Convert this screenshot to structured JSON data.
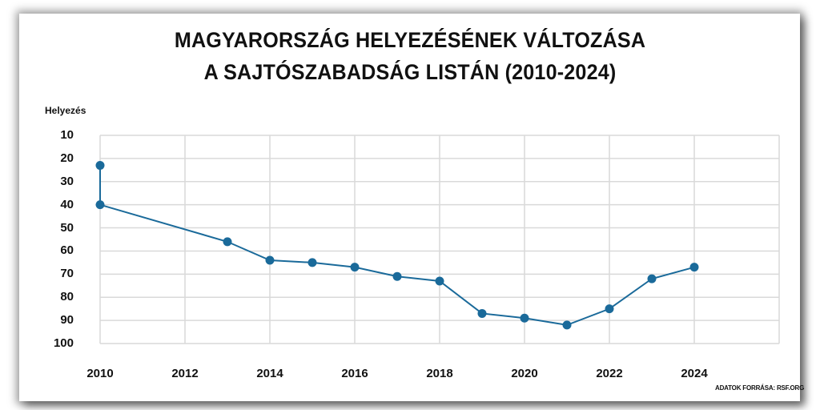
{
  "title_line1": "MAGYARORSZÁG HELYEZÉSÉNEK VÁLTOZÁSA",
  "title_line2": "A SAJTÓSZABADSÁG LISTÁN (2010-2024)",
  "source": "ADATOK FORRÁSA: RSF.ORG",
  "colors": {
    "series": "#1a6a9a",
    "grid": "#d9d9d9",
    "text": "#111111"
  },
  "chart_data": {
    "type": "line",
    "title": "MAGYARORSZÁG HELYEZÉSÉNEK VÁLTOZÁSA A SAJTÓSZABADSÁG LISTÁN (2010-2024)",
    "xlabel": "",
    "ylabel": "Helyezés",
    "y_inverted": true,
    "ylim": [
      10,
      100
    ],
    "xlim": [
      2010,
      2026
    ],
    "yticks": [
      "10",
      "20",
      "30",
      "40",
      "50",
      "60",
      "70",
      "80",
      "90",
      "100"
    ],
    "xticks": [
      "2010",
      "2012",
      "2014",
      "2016",
      "2018",
      "2020",
      "2022",
      "2024"
    ],
    "grid": true,
    "legend": null,
    "series": [
      {
        "name": "Helyezés",
        "x": [
          2010,
          2010,
          2013,
          2014,
          2015,
          2016,
          2017,
          2018,
          2019,
          2020,
          2021,
          2022,
          2023,
          2024
        ],
        "values": [
          23,
          40,
          56,
          64,
          65,
          67,
          71,
          73,
          87,
          89,
          92,
          85,
          72,
          67
        ]
      }
    ],
    "source": "ADATOK FORRÁSA: RSF.ORG"
  }
}
